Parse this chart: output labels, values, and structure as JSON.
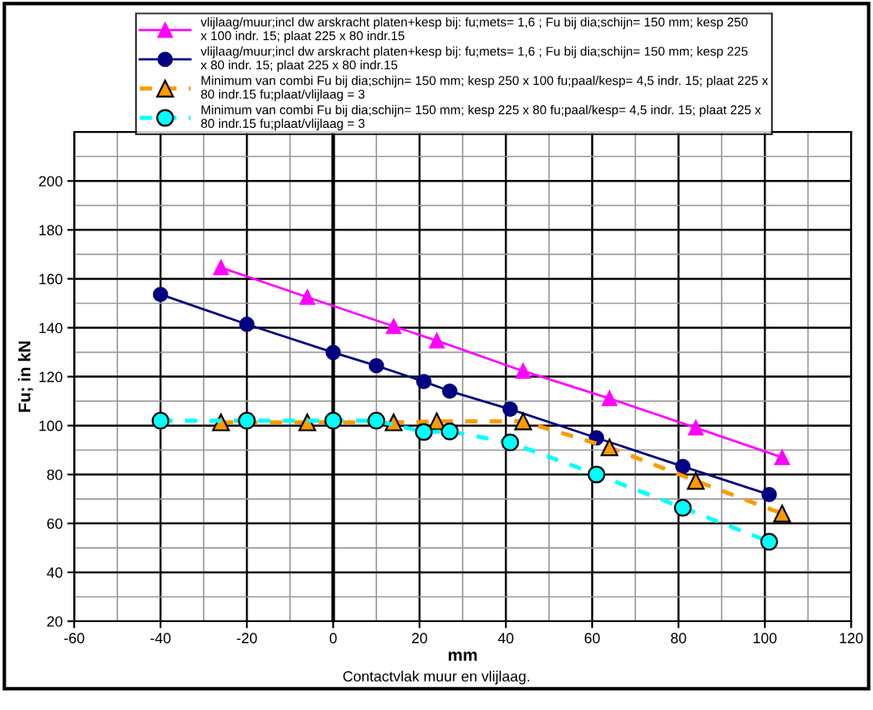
{
  "chart_data": {
    "type": "line",
    "xlabel": "mm",
    "ylabel": "Fu; in kN",
    "annotations": [
      "Contactvlak muur en vlijlaag."
    ],
    "xlim": [
      -60,
      120
    ],
    "xticks": [
      -60,
      -40,
      -20,
      0,
      20,
      40,
      60,
      80,
      100,
      120
    ],
    "ylim": [
      20,
      220
    ],
    "yticks": [
      20,
      40,
      60,
      80,
      100,
      120,
      140,
      160,
      180,
      200
    ],
    "grid": true,
    "legend": "top",
    "series": [
      {
        "name": "vlijlaag/muur;incl dw arskracht platen+kesp bij: fu;mets= 1,6 ; Fu bij dia;schijn= 150 mm; kesp 250 x 100 indr. 15; plaat 225 x 80 indr.15",
        "color": "#ff00ff",
        "marker": "triangle",
        "line_style": "solid",
        "x": [
          -26,
          -6,
          14,
          24,
          44,
          64,
          84,
          104
        ],
        "values": [
          164.6,
          152.5,
          140.6,
          134.7,
          122.3,
          111.1,
          99.1,
          87.0
        ]
      },
      {
        "name": "vlijlaag/muur;incl dw arskracht platen+kesp bij: fu;mets= 1,6 ; Fu bij dia;schijn= 150 mm; kesp 225 x 80 indr. 15; plaat 225 x 80 indr.15",
        "color": "#000080",
        "marker": "circle",
        "line_style": "solid",
        "x": [
          -40,
          -20,
          0,
          10,
          21,
          27,
          41,
          61,
          81,
          101
        ],
        "values": [
          153.6,
          141.4,
          129.9,
          124.5,
          118.0,
          114.1,
          106.7,
          95.0,
          83.3,
          71.8
        ]
      },
      {
        "name": "Minimum van combi Fu bij dia;schijn= 150 mm; kesp 250 x 100 fu;paal/kesp= 4,5 indr. 15; plaat 225 x 80 indr.15 fu;plaat/vlijlaag = 3",
        "color": "#ff9900",
        "marker": "triangle",
        "line_style": "dashed",
        "x": [
          -26,
          -6,
          14,
          24,
          44,
          64,
          84,
          104
        ],
        "values": [
          101.3,
          101.3,
          101.3,
          101.7,
          101.7,
          91.1,
          77.4,
          64.0
        ]
      },
      {
        "name": "Minimum van combi Fu bij dia;schijn= 150 mm; kesp 225 x 80 fu;paal/kesp= 4,5 indr. 15; plaat 225 x 80 indr.15 fu;plaat/vlijlaag = 3",
        "color": "#00ffff",
        "marker": "circle",
        "line_style": "dashed",
        "x": [
          -40,
          -20,
          0,
          10,
          21,
          27,
          41,
          61,
          81,
          101
        ],
        "values": [
          102.0,
          102.0,
          102.0,
          102.0,
          97.4,
          97.6,
          93.1,
          80.0,
          66.4,
          52.5
        ]
      }
    ]
  }
}
